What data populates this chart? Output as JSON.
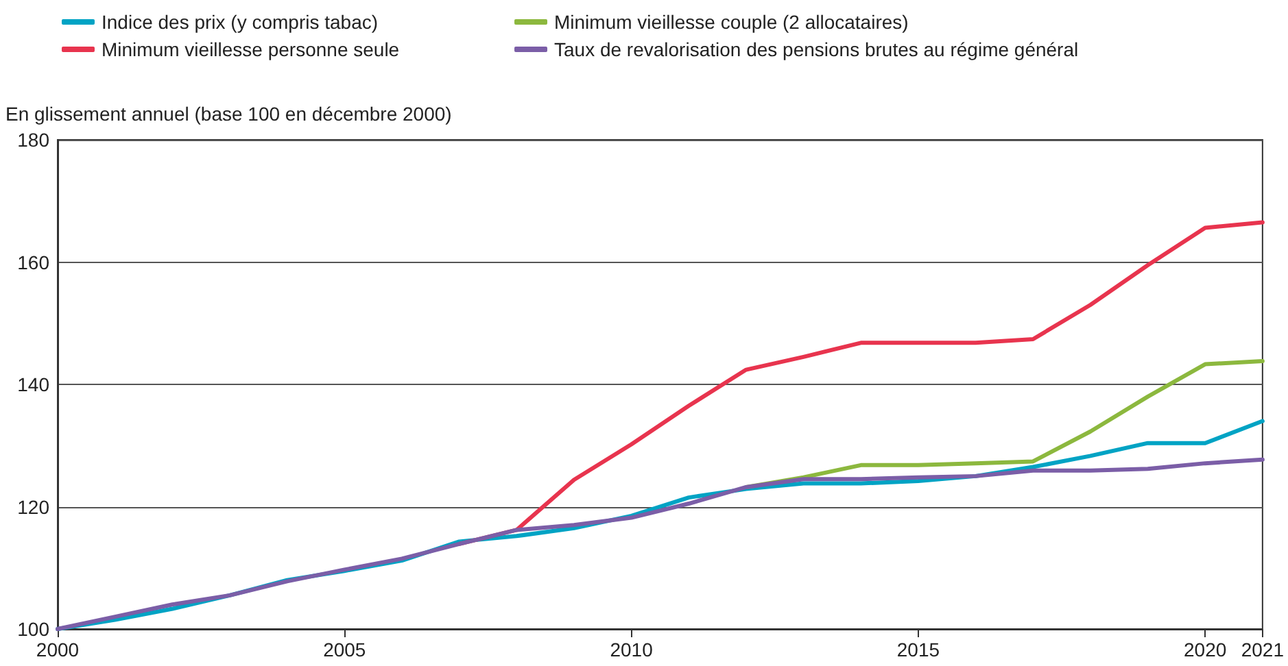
{
  "chart_data": {
    "type": "line",
    "ylabel": "En glissement annuel (base 100 en décembre 2000)",
    "x": [
      2000,
      2001,
      2002,
      2003,
      2004,
      2005,
      2006,
      2007,
      2008,
      2009,
      2010,
      2011,
      2012,
      2013,
      2014,
      2015,
      2016,
      2017,
      2018,
      2019,
      2020,
      2021
    ],
    "series": [
      {
        "name": "Indice des prix (y compris tabac)",
        "color": "#00a3c4",
        "values": [
          100,
          101.5,
          103.3,
          105.5,
          108,
          109.5,
          111.2,
          114.3,
          115.2,
          116.5,
          118.5,
          121.5,
          122.9,
          123.8,
          123.8,
          124.2,
          125,
          126.5,
          128.3,
          130.4,
          130.4,
          134
        ]
      },
      {
        "name": "Minimum vieillesse personne seule",
        "color": "#e8344e",
        "values": [
          null,
          null,
          null,
          null,
          null,
          null,
          null,
          113.9,
          116.2,
          124.4,
          130.2,
          136.5,
          142.4,
          144.5,
          146.8,
          146.8,
          146.8,
          147.4,
          153,
          159.5,
          165.6,
          166.5
        ]
      },
      {
        "name": "Minimum vieillesse couple (2 allocataires)",
        "color": "#8cb83e",
        "values": [
          null,
          null,
          null,
          null,
          null,
          null,
          null,
          null,
          null,
          null,
          null,
          null,
          123.2,
          124.8,
          126.8,
          126.8,
          127.1,
          127.4,
          132.3,
          138,
          143.3,
          143.8
        ]
      },
      {
        "name": "Taux de revalorisation des pensions brutes au régime général",
        "color": "#7b5ea7",
        "values": [
          100,
          102,
          104,
          105.5,
          107.8,
          109.7,
          111.5,
          113.9,
          116.2,
          117,
          118.2,
          120.5,
          123.2,
          124.5,
          124.5,
          124.8,
          125,
          125.9,
          125.9,
          126.2,
          127.1,
          127.7
        ]
      }
    ],
    "xlim": [
      2000,
      2021
    ],
    "xticks": [
      2000,
      2005,
      2010,
      2015,
      2020,
      2021
    ],
    "ylim": [
      100,
      180
    ],
    "yticks": [
      100,
      120,
      140,
      160,
      180
    ],
    "grid": "y",
    "legend": "top left",
    "marker": "none",
    "line_style": "solid"
  }
}
